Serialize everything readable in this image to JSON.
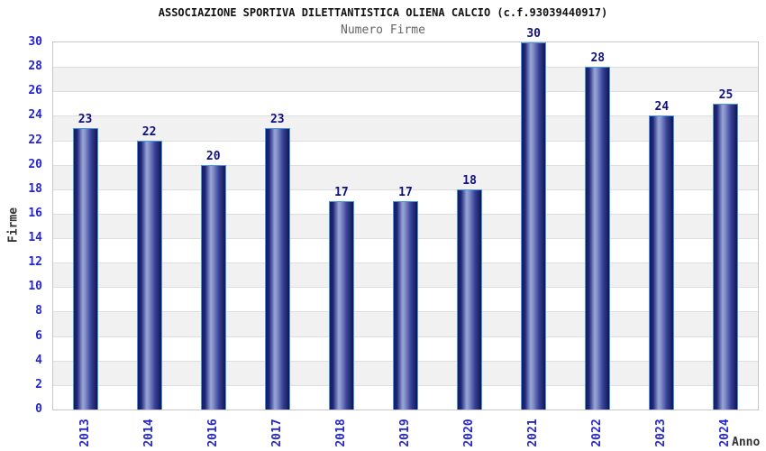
{
  "title": "ASSOCIAZIONE SPORTIVA DILETTANTISTICA OLIENA CALCIO (c.f.93039440917)",
  "subtitle": "Numero Firme",
  "chart_data": {
    "type": "bar",
    "title": "ASSOCIAZIONE SPORTIVA DILETTANTISTICA OLIENA CALCIO (c.f.93039440917)",
    "subtitle": "Numero Firme",
    "xlabel": "Anno",
    "ylabel": "Firme",
    "categories": [
      "2013",
      "2014",
      "2016",
      "2017",
      "2018",
      "2019",
      "2020",
      "2021",
      "2022",
      "2023",
      "2024"
    ],
    "values": [
      23,
      22,
      20,
      23,
      17,
      17,
      18,
      30,
      28,
      24,
      25
    ],
    "ylim": [
      0,
      30
    ],
    "ytick_step": 2,
    "grid": "horizontal gridlines with alternating white/gray bands",
    "legend_position": "none",
    "bar_labels_shown": true,
    "colors": {
      "bar_dark": "#141a68",
      "bar_light": "#9aa6d8",
      "bar_border": "#4a95e0",
      "axis_tick_label": "#2626cc",
      "bar_value_label": "#10107e",
      "band_gray": "#f1f1f1",
      "gridline": "#dedede",
      "plot_border": "#c8c8c8",
      "title_color": "#111111",
      "subtitle_color": "#666666",
      "axis_title_color": "#333333"
    }
  }
}
